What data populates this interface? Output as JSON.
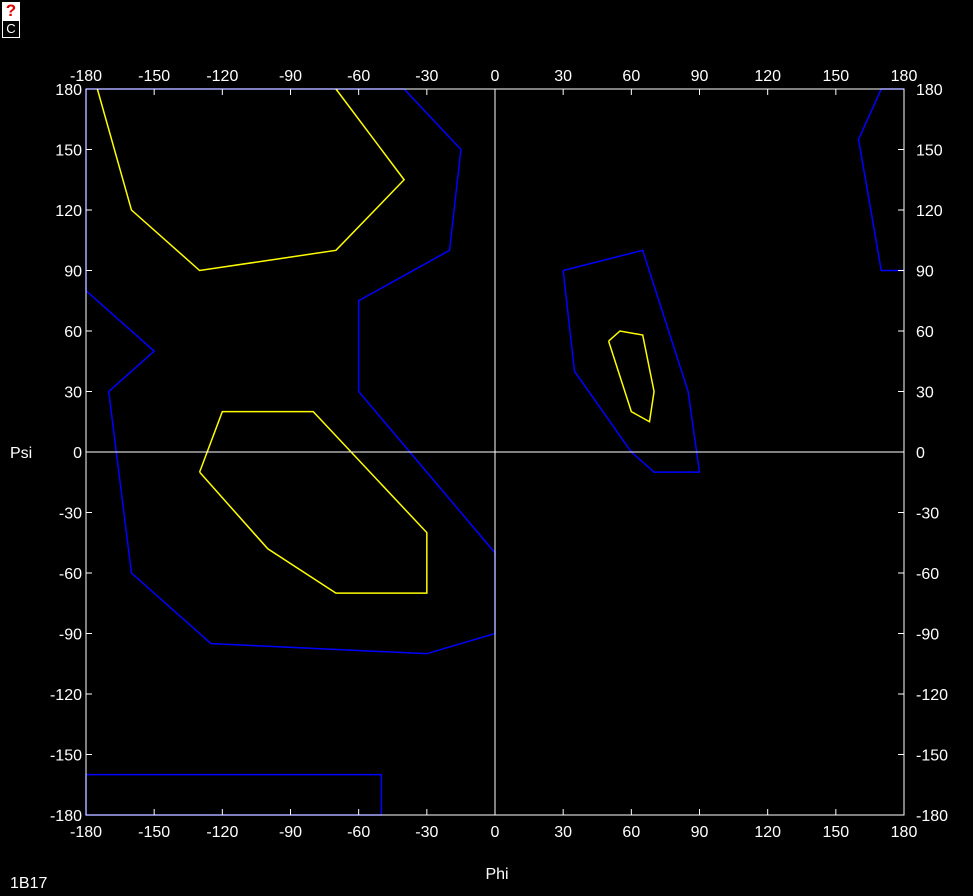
{
  "toolbar": {
    "help_label": "?",
    "c_label": "C"
  },
  "structure_id": "1B17",
  "chart_data": {
    "type": "line",
    "title": "",
    "xlabel": "Phi",
    "ylabel": "Psi",
    "xlim": [
      -180,
      180
    ],
    "ylim": [
      -180,
      180
    ],
    "xticks": [
      -180,
      -150,
      -120,
      -90,
      -60,
      -30,
      0,
      30,
      60,
      90,
      120,
      150,
      180
    ],
    "yticks": [
      -180,
      -150,
      -120,
      -90,
      -60,
      -30,
      0,
      30,
      60,
      90,
      120,
      150,
      180
    ],
    "grid": false,
    "axis_lines_at_zero": true,
    "colors": {
      "background": "#000000",
      "frame": "#ffffff",
      "allowed": "#0000ff",
      "core": "#ffff00",
      "text": "#ffffff"
    },
    "series": [
      {
        "kind": "allowed",
        "color": "#0000ff",
        "points": [
          [
            -180,
            180
          ],
          [
            -40,
            180
          ],
          [
            -15,
            150
          ],
          [
            -20,
            100
          ],
          [
            -60,
            75
          ],
          [
            -60,
            30
          ],
          [
            0,
            -50
          ],
          [
            0,
            -90
          ],
          [
            -30,
            -100
          ],
          [
            -125,
            -95
          ],
          [
            -160,
            -60
          ],
          [
            -170,
            30
          ],
          [
            -150,
            50
          ],
          [
            -180,
            80
          ],
          [
            -180,
            180
          ]
        ]
      },
      {
        "kind": "allowed",
        "color": "#0000ff",
        "points": [
          [
            30,
            90
          ],
          [
            65,
            100
          ],
          [
            85,
            30
          ],
          [
            90,
            -10
          ],
          [
            70,
            -10
          ],
          [
            60,
            0
          ],
          [
            35,
            40
          ],
          [
            30,
            90
          ]
        ]
      },
      {
        "kind": "allowed",
        "color": "#0000ff",
        "points": [
          [
            180,
            180
          ],
          [
            170,
            180
          ],
          [
            160,
            155
          ],
          [
            170,
            90
          ],
          [
            180,
            90
          ]
        ]
      },
      {
        "kind": "allowed",
        "color": "#0000ff",
        "points": [
          [
            -180,
            -160
          ],
          [
            -50,
            -160
          ],
          [
            -50,
            -180
          ],
          [
            -180,
            -180
          ],
          [
            -180,
            -160
          ]
        ]
      },
      {
        "kind": "core",
        "color": "#ffff00",
        "points": [
          [
            -175,
            180
          ],
          [
            -160,
            120
          ],
          [
            -130,
            90
          ],
          [
            -70,
            100
          ],
          [
            -40,
            135
          ],
          [
            -70,
            180
          ]
        ]
      },
      {
        "kind": "core",
        "color": "#ffff00",
        "points": [
          [
            -130,
            -10
          ],
          [
            -120,
            20
          ],
          [
            -80,
            20
          ],
          [
            -30,
            -40
          ],
          [
            -30,
            -70
          ],
          [
            -70,
            -70
          ],
          [
            -100,
            -48
          ],
          [
            -130,
            -10
          ]
        ]
      },
      {
        "kind": "core",
        "color": "#ffff00",
        "points": [
          [
            50,
            55
          ],
          [
            55,
            60
          ],
          [
            65,
            58
          ],
          [
            70,
            30
          ],
          [
            68,
            15
          ],
          [
            60,
            20
          ],
          [
            50,
            55
          ]
        ]
      }
    ]
  }
}
